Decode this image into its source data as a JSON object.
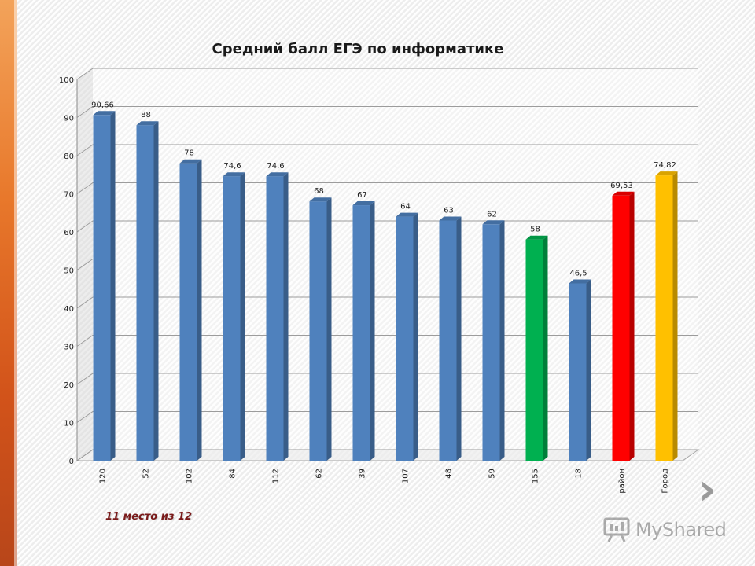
{
  "chart_data": {
    "type": "bar",
    "title": "Средний балл ЕГЭ по информатике",
    "xlabel": "",
    "ylabel": "",
    "ylim": [
      0,
      100
    ],
    "yticks": [
      0,
      10,
      20,
      30,
      40,
      50,
      60,
      70,
      80,
      90,
      100
    ],
    "grid": true,
    "legend": "none",
    "categories": [
      "120",
      "52",
      "102",
      "84",
      "112",
      "62",
      "39",
      "107",
      "48",
      "59",
      "155",
      "18",
      "район",
      "Город"
    ],
    "values": [
      90.66,
      88,
      78,
      74.6,
      74.6,
      68,
      67,
      64,
      63,
      62,
      58,
      46.5,
      69.53,
      74.82
    ],
    "value_labels": [
      "90,66",
      "88",
      "78",
      "74,6",
      "74,6",
      "68",
      "67",
      "64",
      "63",
      "62",
      "58",
      "46,5",
      "69,53",
      "74,82"
    ],
    "colors": [
      "#4f81bd",
      "#4f81bd",
      "#4f81bd",
      "#4f81bd",
      "#4f81bd",
      "#4f81bd",
      "#4f81bd",
      "#4f81bd",
      "#4f81bd",
      "#4f81bd",
      "#00b050",
      "#4f81bd",
      "#ff0000",
      "#ffc000"
    ]
  },
  "note": "11 место из 12",
  "watermark": {
    "text": "MyShared",
    "icon": "presentation-board-icon"
  },
  "nav": {
    "next_icon": "chevron-right-icon",
    "next_glyph": "›"
  }
}
